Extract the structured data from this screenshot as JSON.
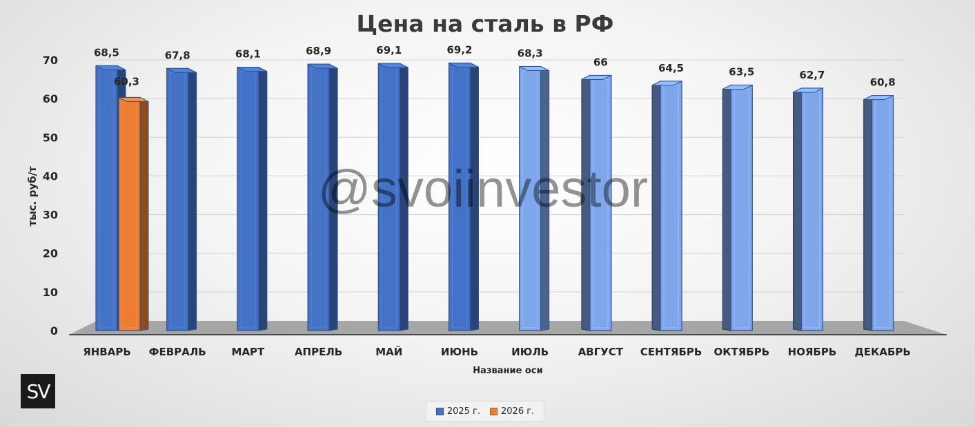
{
  "chart_data": {
    "type": "bar",
    "title": "Цена на сталь в РФ",
    "xlabel": "Название оси",
    "ylabel": "тыс. руб/т",
    "ylim": [
      0,
      70
    ],
    "yticks": [
      "0",
      "10",
      "20",
      "30",
      "40",
      "50",
      "60",
      "70"
    ],
    "grid": true,
    "legend_position": "bottom",
    "categories": [
      "ЯНВАРЬ",
      "ФЕВРАЛЬ",
      "МАРТ",
      "АПРЕЛЬ",
      "МАЙ",
      "ИЮНЬ",
      "ИЮЛЬ",
      "АВГУСТ",
      "СЕНТЯБРЬ",
      "ОКТЯБРЬ",
      "НОЯБРЬ",
      "ДЕКАБРЬ"
    ],
    "series": [
      {
        "name": "2025 г.",
        "color": "#4472c4",
        "values": [
          68.5,
          67.8,
          68.1,
          68.9,
          69.1,
          69.2,
          68.3,
          66,
          64.5,
          63.5,
          62.7,
          60.8
        ],
        "labels": [
          "68,5",
          "67,8",
          "68,1",
          "68,9",
          "69,1",
          "69,2",
          "68,3",
          "66",
          "64,5",
          "63,5",
          "62,7",
          "60,8"
        ]
      },
      {
        "name": "2026 г.",
        "color": "#ed7d31",
        "values": [
          60.3,
          null,
          null,
          null,
          null,
          null,
          null,
          null,
          null,
          null,
          null,
          null
        ],
        "labels": [
          "60,3",
          null,
          null,
          null,
          null,
          null,
          null,
          null,
          null,
          null,
          null,
          null
        ]
      }
    ]
  },
  "watermark": "@svoiinvestor",
  "logo": "SV"
}
